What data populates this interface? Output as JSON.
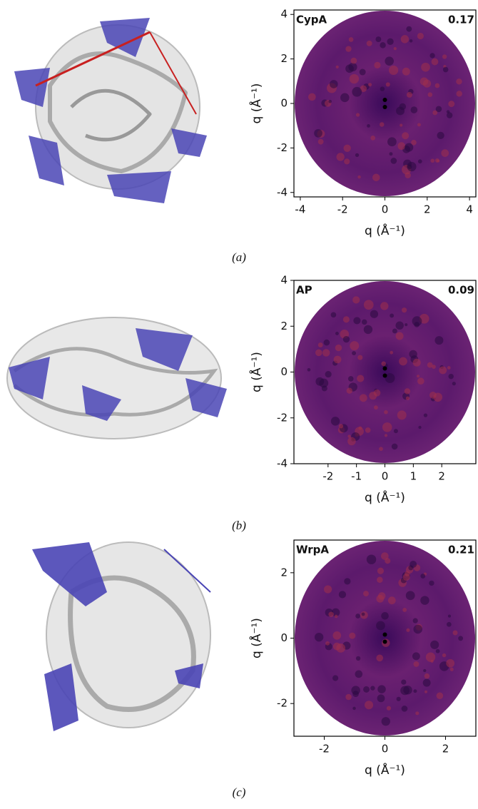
{
  "chart_data": [
    {
      "type": "heatmap",
      "label": "CypA",
      "score": 0.17,
      "xlabel": "q (Å⁻¹)",
      "ylabel": "q (Å⁻¹)",
      "xlim": [
        -4.3,
        4.3
      ],
      "ylim": [
        -4.2,
        4.2
      ],
      "xticks": [
        -4,
        -2,
        0,
        2,
        4
      ],
      "yticks": [
        -4,
        -2,
        0,
        2,
        4
      ],
      "caption": "(a)"
    },
    {
      "type": "heatmap",
      "label": "AP",
      "score": 0.09,
      "xlabel": "q (Å⁻¹)",
      "ylabel": "q (Å⁻¹)",
      "xlim": [
        -3.2,
        3.2
      ],
      "ylim": [
        -4,
        4
      ],
      "xticks": [
        -2,
        -1,
        0,
        1,
        2
      ],
      "yticks": [
        -4,
        -2,
        0,
        2,
        4
      ],
      "caption": "(b)"
    },
    {
      "type": "heatmap",
      "label": "WrpA",
      "score": 0.21,
      "xlabel": "q (Å⁻¹)",
      "ylabel": "q (Å⁻¹)",
      "xlim": [
        -3,
        3
      ],
      "ylim": [
        -3,
        3
      ],
      "xticks": [
        -2,
        0,
        2
      ],
      "yticks": [
        -2,
        0,
        2
      ],
      "caption": "(c)"
    }
  ]
}
